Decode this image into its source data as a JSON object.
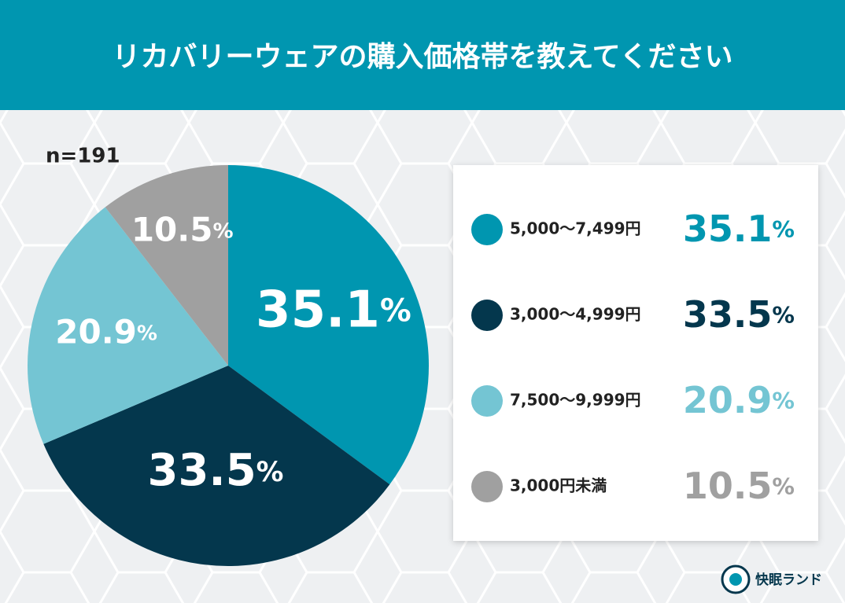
{
  "chart_data": {
    "type": "pie",
    "title": "リカバリーウェアの購入価格帯を教えてください",
    "subtitle": "n=191",
    "categories": [
      "5,000〜7,499円",
      "3,000〜4,999円",
      "7,500〜9,999円",
      "3,000円未満"
    ],
    "values": [
      35.1,
      33.5,
      20.9,
      10.5
    ],
    "value_labels": [
      "35.1%",
      "33.5%",
      "20.9%",
      "10.5%"
    ],
    "colors": [
      "#0096b0",
      "#04374d",
      "#74c5d3",
      "#a0a0a0"
    ],
    "legend": "right"
  },
  "brand": "快眠ランド"
}
